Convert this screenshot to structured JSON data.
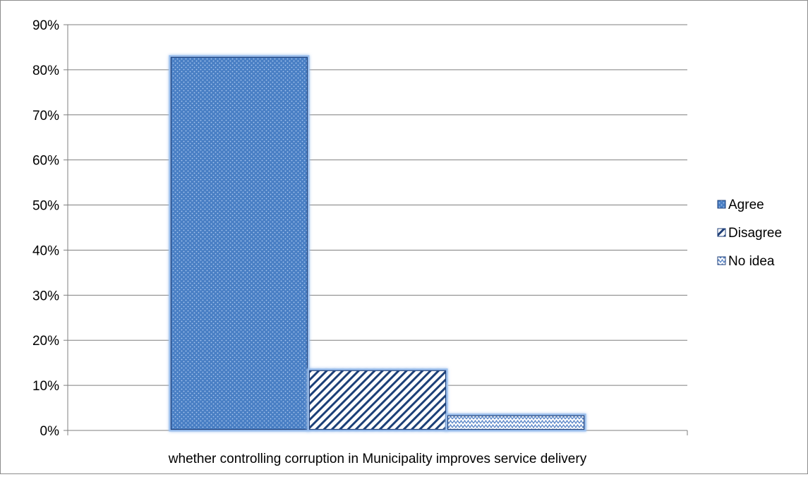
{
  "chart_data": {
    "type": "bar",
    "title": "",
    "xlabel": "",
    "ylabel": "",
    "categories": [
      "whether controlling corruption in Municipality improves service delivery"
    ],
    "series": [
      {
        "name": "Agree",
        "values": [
          83
        ],
        "color": "#4a7fc4",
        "pattern": "dotted"
      },
      {
        "name": "Disagree",
        "values": [
          13.5
        ],
        "color": "#1f3f78",
        "pattern": "diagonal-hatch"
      },
      {
        "name": "No idea",
        "values": [
          3.5
        ],
        "color": "#5a86c8",
        "pattern": "zigzag"
      }
    ],
    "ylim": [
      0,
      90
    ],
    "yticks": [
      0,
      10,
      20,
      30,
      40,
      50,
      60,
      70,
      80,
      90
    ],
    "ytick_labels": [
      "0%",
      "10%",
      "20%",
      "30%",
      "40%",
      "50%",
      "60%",
      "70%",
      "80%",
      "90%"
    ],
    "grid": true,
    "legend_position": "right"
  }
}
